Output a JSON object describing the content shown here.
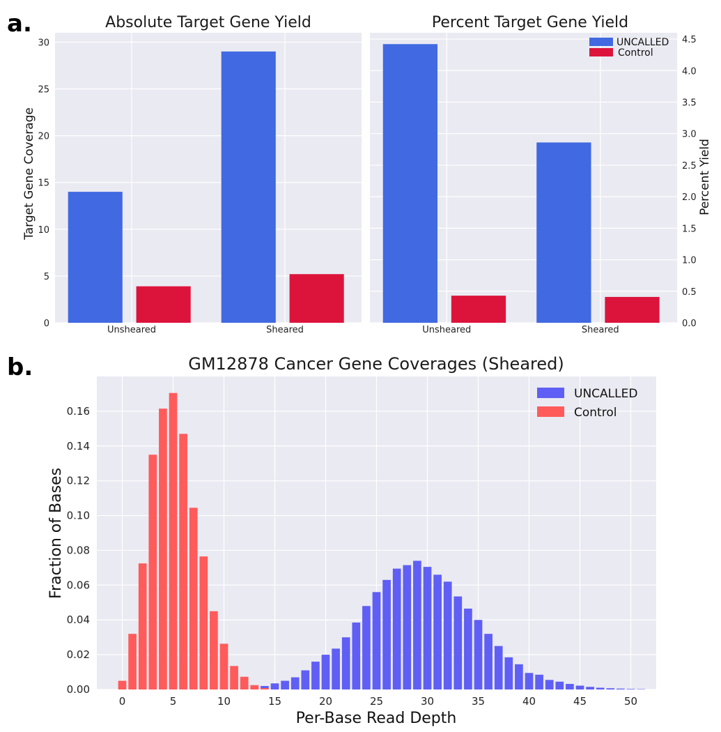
{
  "panels": {
    "a_label": "a.",
    "b_label": "b."
  },
  "chart_data": [
    {
      "type": "bar",
      "title": "Absolute Target Gene Yield",
      "xlabel": "",
      "ylabel": "Target Gene Coverage",
      "categories": [
        "Unsheared",
        "Sheared"
      ],
      "series": [
        {
          "name": "UNCALLED",
          "values": [
            14.0,
            29.0
          ]
        },
        {
          "name": "Control",
          "values": [
            3.9,
            5.2
          ]
        }
      ],
      "ylim": [
        0,
        31
      ],
      "yticks": [
        0,
        5,
        10,
        15,
        20,
        25,
        30
      ],
      "colors": [
        "#4169e1",
        "#dc143c"
      ],
      "grid": true
    },
    {
      "type": "bar",
      "title": "Percent Target Gene Yield",
      "xlabel": "",
      "ylabel": "Percent Yield",
      "categories": [
        "Unsheared",
        "Sheared"
      ],
      "series": [
        {
          "name": "UNCALLED",
          "values": [
            4.42,
            2.86
          ]
        },
        {
          "name": "Control",
          "values": [
            0.43,
            0.41
          ]
        }
      ],
      "ylim": [
        0,
        4.6
      ],
      "yticks": [
        "0.0",
        "0.5",
        "1.0",
        "1.5",
        "2.0",
        "2.5",
        "3.0",
        "3.5",
        "4.0",
        "4.5"
      ],
      "yaxis_side": "right",
      "colors": [
        "#4169e1",
        "#dc143c"
      ],
      "legend": {
        "entries": [
          "UNCALLED",
          "Control"
        ],
        "placement": "top-right"
      },
      "grid": true
    },
    {
      "type": "bar",
      "title": "GM12878 Cancer Gene Coverages (Sheared)",
      "xlabel": "Per-Base Read Depth",
      "ylabel": "Fraction of Bases",
      "xlim": [
        -2.5,
        52.5
      ],
      "ylim": [
        0,
        0.18
      ],
      "xticks": [
        0,
        5,
        10,
        15,
        20,
        25,
        30,
        35,
        40,
        45,
        50
      ],
      "yticks": [
        "0.00",
        "0.02",
        "0.04",
        "0.06",
        "0.08",
        "0.10",
        "0.12",
        "0.14",
        "0.16"
      ],
      "series": [
        {
          "name": "UNCALLED",
          "color": "#5f5ff5",
          "x": [
            10,
            11,
            12,
            13,
            14,
            15,
            16,
            17,
            18,
            19,
            20,
            21,
            22,
            23,
            24,
            25,
            26,
            27,
            28,
            29,
            30,
            31,
            32,
            33,
            34,
            35,
            36,
            37,
            38,
            39,
            40,
            41,
            42,
            43,
            44,
            45,
            46,
            47,
            48,
            49,
            50,
            51
          ],
          "values": [
            0.0005,
            0.0008,
            0.001,
            0.0015,
            0.002,
            0.0035,
            0.005,
            0.007,
            0.011,
            0.016,
            0.02,
            0.0235,
            0.03,
            0.0385,
            0.048,
            0.056,
            0.063,
            0.0695,
            0.0715,
            0.074,
            0.0705,
            0.066,
            0.062,
            0.0535,
            0.0465,
            0.04,
            0.032,
            0.025,
            0.0185,
            0.0145,
            0.0095,
            0.0085,
            0.0055,
            0.0045,
            0.0032,
            0.0022,
            0.0015,
            0.001,
            0.0007,
            0.0005,
            0.0003,
            0.0002
          ]
        },
        {
          "name": "Control",
          "color": "#ff5b5b",
          "x": [
            0,
            1,
            2,
            3,
            4,
            5,
            6,
            7,
            8,
            9,
            10,
            11,
            12,
            13,
            14
          ],
          "values": [
            0.005,
            0.032,
            0.0725,
            0.135,
            0.1615,
            0.1705,
            0.147,
            0.1045,
            0.0765,
            0.045,
            0.0263,
            0.0135,
            0.0073,
            0.0025,
            0.0008
          ]
        }
      ],
      "legend": {
        "entries": [
          "UNCALLED",
          "Control"
        ],
        "placement": "top-right"
      },
      "grid": true
    }
  ]
}
